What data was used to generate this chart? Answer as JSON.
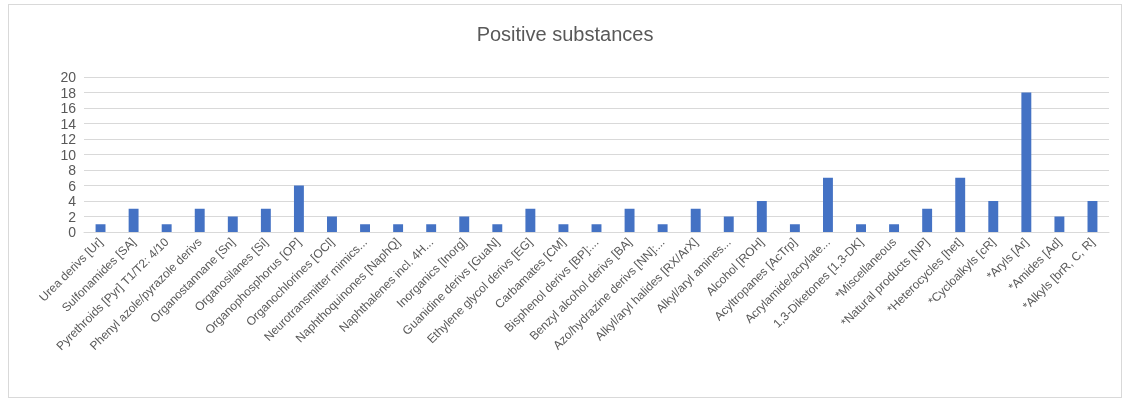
{
  "chart_data": {
    "type": "bar",
    "title": "Positive substances",
    "categories": [
      "Urea derivs [Ur]",
      "Sulfonamides [SA]",
      "Pyrethroids [Pyr] T1/T2: 4/10",
      "Phenyl azole/pyrazole derivs",
      "Organostannane [Sn]",
      "Organosilanes [Si]",
      "Organophosphorus [OP]",
      "Organochlorines [OCl]",
      "Neurotransmitter mimics...",
      "Naphthoquinones [NaphQ]",
      "Naphthalenes incl. 4H...",
      "Inorganics [Inorg]",
      "Guanidine derivs [GuaN]",
      "Ethylene glycol derivs [EG]",
      "Carbamates [CM]",
      "Bisphenol derivs [BP]:...",
      "Benzyl alcohol derivs [BA]",
      "Azo/hydrazine derivs [NN]:...",
      "Alkyl/aryl halides [RX/ArX]",
      "Alkyl/aryl amines...",
      "Alcohol [ROH]",
      "Acyltropanes [AcTrp]",
      "Acrylamide/acrylate...",
      "1,3-Diketones [1,3-DK]",
      "*Miscellaneous",
      "*Natural products [NP]",
      "*Heterocycles [het]",
      "*Cycloalkyls [cR]",
      "*Aryls [Ar]",
      "*Amides [Ad]",
      "*Alkyls [brR, C, R]"
    ],
    "values": [
      1,
      3,
      1,
      3,
      2,
      3,
      6,
      2,
      1,
      1,
      1,
      2,
      1,
      3,
      1,
      1,
      3,
      1,
      3,
      2,
      4,
      1,
      7,
      1,
      1,
      3,
      7,
      4,
      18,
      2,
      4
    ],
    "color": "#4472c4",
    "ylim": [
      0,
      20
    ],
    "yticks": [
      0,
      2,
      4,
      6,
      8,
      10,
      12,
      14,
      16,
      18,
      20
    ],
    "grid": "y"
  }
}
